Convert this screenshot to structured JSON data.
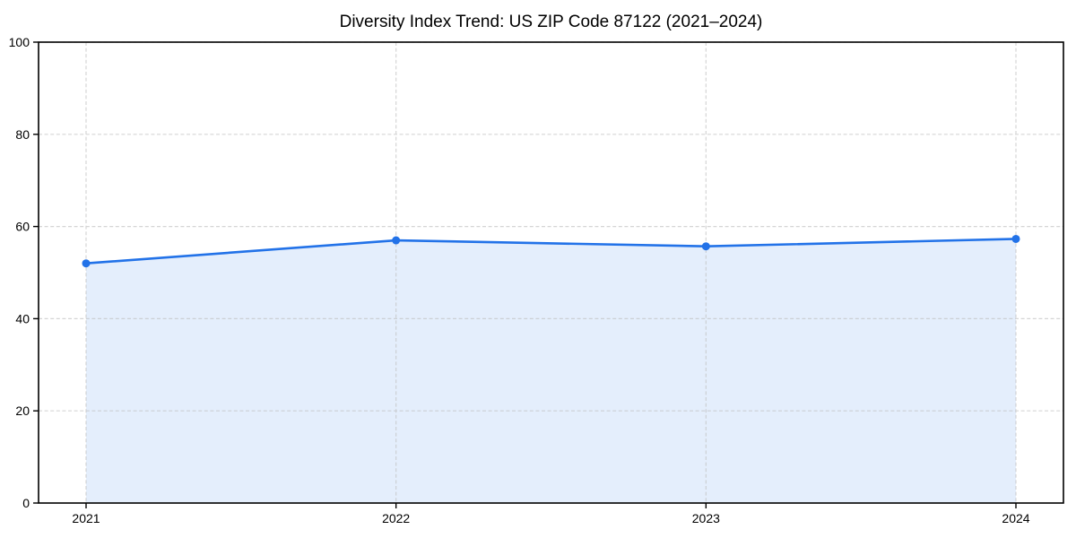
{
  "chart_data": {
    "type": "area",
    "title": "Diversity Index Trend: US ZIP Code 87122 (2021–2024)",
    "categories": [
      "2021",
      "2022",
      "2023",
      "2024"
    ],
    "series": [
      {
        "name": "Diversity Index",
        "values": [
          52,
          57,
          55.7,
          57.3
        ]
      }
    ],
    "xlabel": "",
    "ylabel": "",
    "ylim": [
      0,
      100
    ],
    "yticks": [
      0,
      20,
      40,
      60,
      80,
      100
    ],
    "grid": "dashed",
    "legend": "none",
    "marker": "circle",
    "colors": {
      "line": "#2272e8",
      "marker": "#2272e8",
      "fill": "rgba(34,114,232,0.12)",
      "grid": "#bfbfbf",
      "frame": "#000000",
      "text": "#000000",
      "background": "#ffffff"
    }
  }
}
